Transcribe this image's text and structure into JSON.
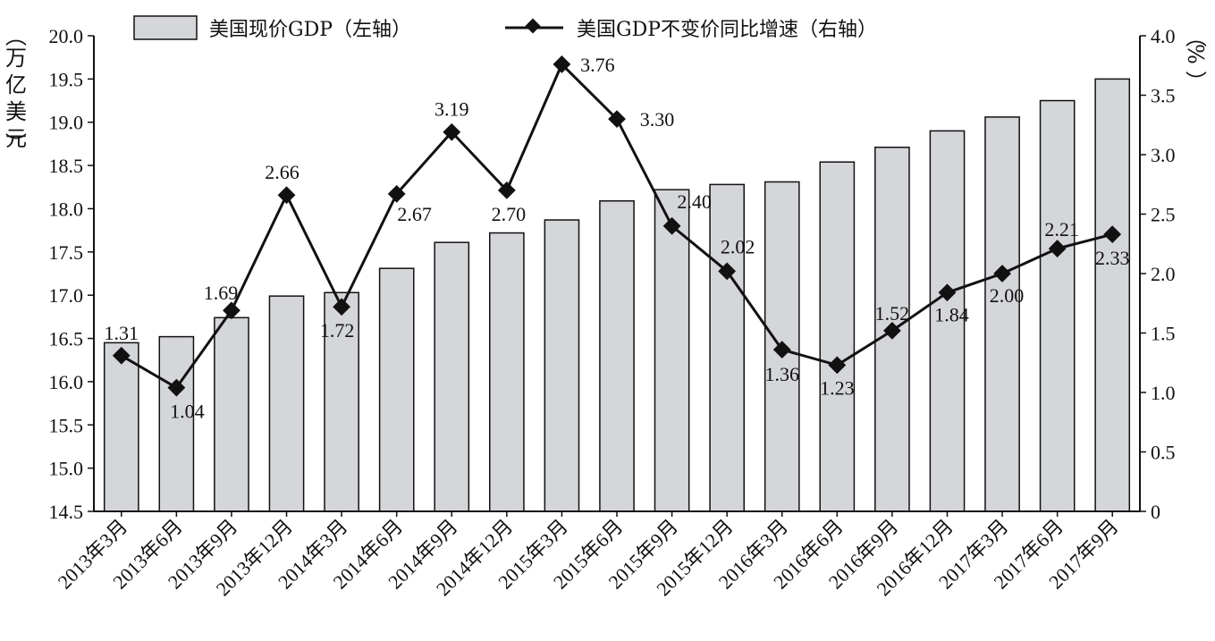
{
  "chart_data": {
    "type": "bar",
    "categories": [
      "2013年3月",
      "2013年6月",
      "2013年9月",
      "2013年12月",
      "2014年3月",
      "2014年6月",
      "2014年9月",
      "2014年12月",
      "2015年3月",
      "2015年6月",
      "2015年9月",
      "2015年12月",
      "2016年3月",
      "2016年6月",
      "2016年9月",
      "2016年12月",
      "2017年3月",
      "2017年6月",
      "2017年9月"
    ],
    "series": [
      {
        "name": "美国现价GDP（左轴）",
        "type": "bar",
        "axis": "left",
        "color": "#d4d6d9",
        "values": [
          16.45,
          16.52,
          16.74,
          16.99,
          17.03,
          17.31,
          17.61,
          17.72,
          17.87,
          18.09,
          18.22,
          18.28,
          18.31,
          18.54,
          18.71,
          18.9,
          19.06,
          19.25,
          19.5
        ]
      },
      {
        "name": "美国GDP不变价同比增速（右轴）",
        "type": "line",
        "axis": "right",
        "color": "#111111",
        "values": [
          1.31,
          1.04,
          1.69,
          2.66,
          1.72,
          2.67,
          3.19,
          2.7,
          3.76,
          3.3,
          2.4,
          2.02,
          1.36,
          1.23,
          1.52,
          1.84,
          2.0,
          2.21,
          2.33
        ],
        "labels": [
          "1.31",
          "1.04",
          "1.69",
          "2.66",
          "1.72",
          "2.67",
          "3.19",
          "2.70",
          "3.76",
          "3.30",
          "2.40",
          "2.02",
          "1.36",
          "1.23",
          "1.52",
          "1.84",
          "2.00",
          "2.21",
          "2.33"
        ]
      }
    ],
    "y_left": {
      "label": "（万亿美元）",
      "ylim": [
        14.5,
        20.0
      ],
      "ticks": [
        "14.5",
        "15.0",
        "15.5",
        "16.0",
        "16.5",
        "17.0",
        "17.5",
        "18.0",
        "18.5",
        "19.0",
        "19.5",
        "20.0"
      ]
    },
    "y_right": {
      "label": "（%）",
      "ylim": [
        0,
        4.0
      ],
      "ticks": [
        "0",
        "0.5",
        "1.0",
        "1.5",
        "2.0",
        "2.5",
        "3.0",
        "3.5",
        "4.0"
      ]
    },
    "legend_position": "top",
    "grid": false
  }
}
